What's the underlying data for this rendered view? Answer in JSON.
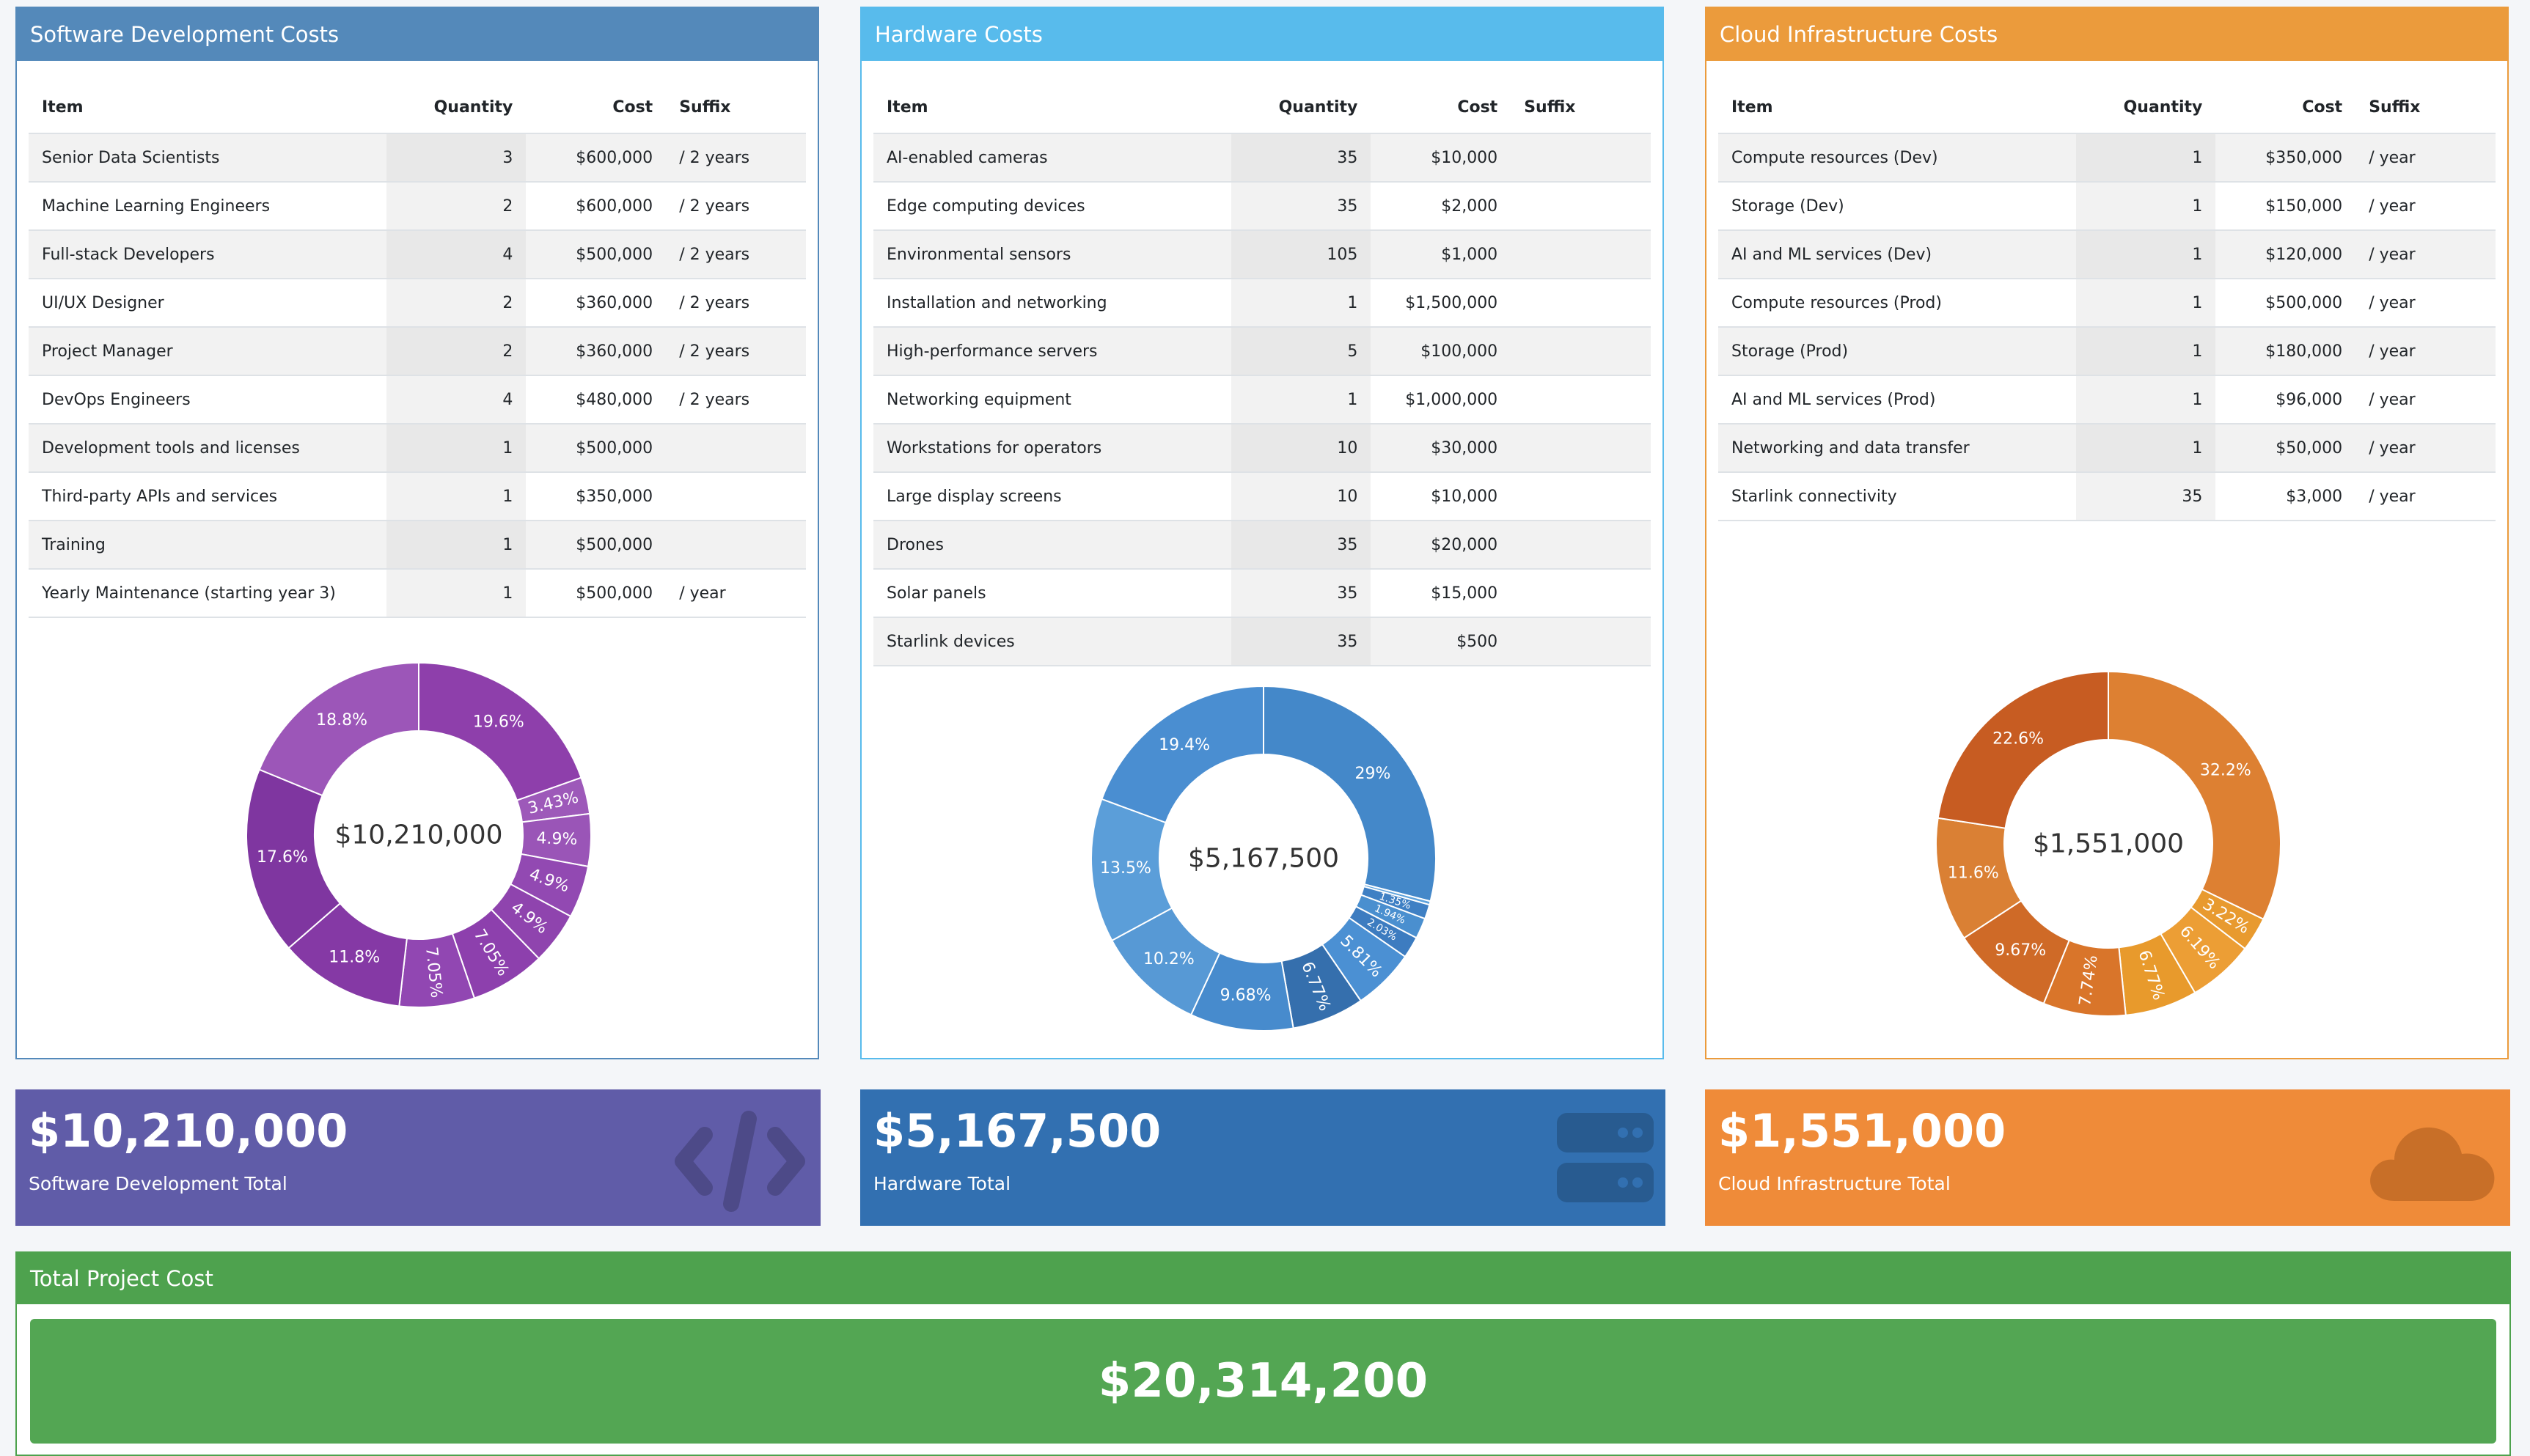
{
  "software": {
    "title": "Software Development Costs",
    "color": "#5489ba",
    "columns": [
      "Item",
      "Quantity",
      "Cost",
      "Suffix"
    ],
    "rows": [
      [
        "Senior Data Scientists",
        "3",
        "$600,000",
        "/ 2 years"
      ],
      [
        "Machine Learning Engineers",
        "2",
        "$600,000",
        "/ 2 years"
      ],
      [
        "Full-stack Developers",
        "4",
        "$500,000",
        "/ 2 years"
      ],
      [
        "UI/UX Designer",
        "2",
        "$360,000",
        "/ 2 years"
      ],
      [
        "Project Manager",
        "2",
        "$360,000",
        "/ 2 years"
      ],
      [
        "DevOps Engineers",
        "4",
        "$480,000",
        "/ 2 years"
      ],
      [
        "Development tools and licenses",
        "1",
        "$500,000",
        ""
      ],
      [
        "Third-party APIs and services",
        "1",
        "$350,000",
        ""
      ],
      [
        "Training",
        "1",
        "$500,000",
        ""
      ],
      [
        "Yearly Maintenance (starting year 3)",
        "1",
        "$500,000",
        "/ year"
      ]
    ],
    "donut_center": "$10,210,000",
    "total_amount": "$10,210,000",
    "total_caption": "Software Development Total",
    "total_color": "#605ca8",
    "icon": "code-icon"
  },
  "hardware": {
    "title": "Hardware Costs",
    "color": "#58bbec",
    "columns": [
      "Item",
      "Quantity",
      "Cost",
      "Suffix"
    ],
    "rows": [
      [
        "AI-enabled cameras",
        "35",
        "$10,000",
        ""
      ],
      [
        "Edge computing devices",
        "35",
        "$2,000",
        ""
      ],
      [
        "Environmental sensors",
        "105",
        "$1,000",
        ""
      ],
      [
        "Installation and networking",
        "1",
        "$1,500,000",
        ""
      ],
      [
        "High-performance servers",
        "5",
        "$100,000",
        ""
      ],
      [
        "Networking equipment",
        "1",
        "$1,000,000",
        ""
      ],
      [
        "Workstations for operators",
        "10",
        "$30,000",
        ""
      ],
      [
        "Large display screens",
        "10",
        "$10,000",
        ""
      ],
      [
        "Drones",
        "35",
        "$20,000",
        ""
      ],
      [
        "Solar panels",
        "35",
        "$15,000",
        ""
      ],
      [
        "Starlink devices",
        "35",
        "$500",
        ""
      ]
    ],
    "donut_center": "$5,167,500",
    "total_amount": "$5,167,500",
    "total_caption": "Hardware Total",
    "total_color": "#3270b1",
    "icon": "server-icon"
  },
  "cloud": {
    "title": "Cloud Infrastructure Costs",
    "color": "#eb9b3c",
    "columns": [
      "Item",
      "Quantity",
      "Cost",
      "Suffix"
    ],
    "rows": [
      [
        "Compute resources (Dev)",
        "1",
        "$350,000",
        "/ year"
      ],
      [
        "Storage (Dev)",
        "1",
        "$150,000",
        "/ year"
      ],
      [
        "AI and ML services (Dev)",
        "1",
        "$120,000",
        "/ year"
      ],
      [
        "Compute resources (Prod)",
        "1",
        "$500,000",
        "/ year"
      ],
      [
        "Storage (Prod)",
        "1",
        "$180,000",
        "/ year"
      ],
      [
        "AI and ML services (Prod)",
        "1",
        "$96,000",
        "/ year"
      ],
      [
        "Networking and data transfer",
        "1",
        "$50,000",
        "/ year"
      ],
      [
        "Starlink connectivity",
        "35",
        "$3,000",
        "/ year"
      ]
    ],
    "donut_center": "$1,551,000",
    "total_amount": "$1,551,000",
    "total_caption": "Cloud Infrastructure Total",
    "total_color": "#ef8b39",
    "icon": "cloud-icon"
  },
  "grand_total": {
    "title": "Total Project Cost",
    "amount": "$20,314,200",
    "color": "#4ea24e"
  },
  "chart_data": [
    {
      "type": "pie",
      "center_label": "$10,210,000",
      "slices": [
        {
          "value": 19.6,
          "label": "19.6%",
          "color": "#8e3fab"
        },
        {
          "value": 3.43,
          "label": "3.43%",
          "color": "#9d59b9"
        },
        {
          "value": 4.9,
          "label": "4.9%",
          "color": "#9a55b7"
        },
        {
          "value": 4.9,
          "label": "4.9%",
          "color": "#9249b2"
        },
        {
          "value": 4.9,
          "label": "4.9%",
          "color": "#8f44ae"
        },
        {
          "value": 7.05,
          "label": "7.05%",
          "color": "#8d40ad"
        },
        {
          "value": 7.05,
          "label": "7.05%",
          "color": "#9147b2"
        },
        {
          "value": 11.8,
          "label": "11.8%",
          "color": "#8539a5"
        },
        {
          "value": 17.6,
          "label": "17.6%",
          "color": "#7f36a0"
        },
        {
          "value": 18.8,
          "label": "18.8%",
          "color": "#9c56b8"
        }
      ]
    },
    {
      "type": "pie",
      "center_label": "$5,167,500",
      "slices": [
        {
          "value": 29.0,
          "label": "29%",
          "color": "#4488c9"
        },
        {
          "value": 0.34,
          "label": "",
          "color": "#5da2dc"
        },
        {
          "value": 1.35,
          "label": "1.35%",
          "color": "#3f80c4"
        },
        {
          "value": 1.94,
          "label": "1.94%",
          "color": "#4a8fcf"
        },
        {
          "value": 2.03,
          "label": "2.03%",
          "color": "#3d7cc0"
        },
        {
          "value": 5.81,
          "label": "5.81%",
          "color": "#4b90d3"
        },
        {
          "value": 6.77,
          "label": "6.77%",
          "color": "#356fad"
        },
        {
          "value": 9.68,
          "label": "9.68%",
          "color": "#478bcd"
        },
        {
          "value": 10.2,
          "label": "10.2%",
          "color": "#5799d5"
        },
        {
          "value": 13.5,
          "label": "13.5%",
          "color": "#5b9ed9"
        },
        {
          "value": 19.4,
          "label": "19.4%",
          "color": "#4a8ed1"
        }
      ]
    },
    {
      "type": "pie",
      "center_label": "$1,551,000",
      "slices": [
        {
          "value": 32.2,
          "label": "32.2%",
          "color": "#dd8032"
        },
        {
          "value": 3.22,
          "label": "3.22%",
          "color": "#e89a2f"
        },
        {
          "value": 6.19,
          "label": "6.19%",
          "color": "#ec9e35"
        },
        {
          "value": 6.77,
          "label": "6.77%",
          "color": "#e89a2c"
        },
        {
          "value": 7.74,
          "label": "7.74%",
          "color": "#d9752a"
        },
        {
          "value": 9.67,
          "label": "9.67%",
          "color": "#cf6a27"
        },
        {
          "value": 11.6,
          "label": "11.6%",
          "color": "#da8034"
        },
        {
          "value": 22.6,
          "label": "22.6%",
          "color": "#c75c22"
        }
      ]
    }
  ]
}
